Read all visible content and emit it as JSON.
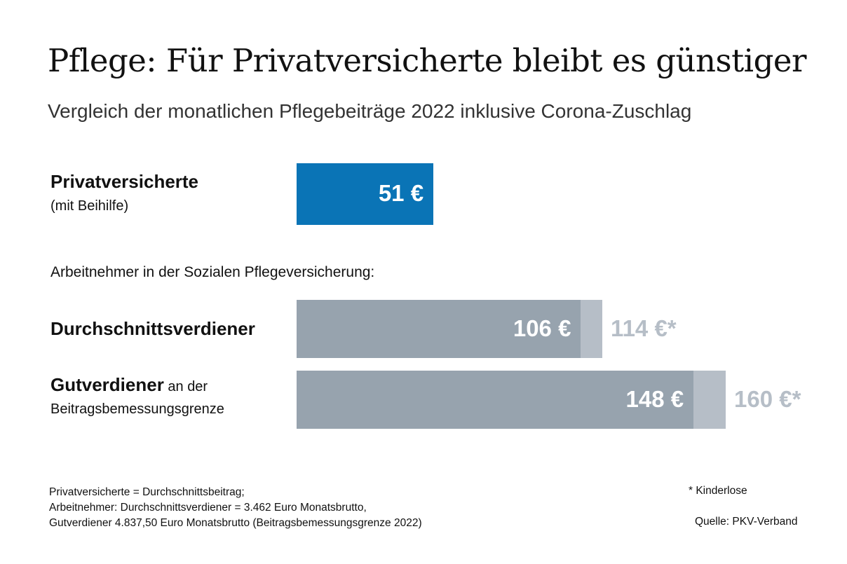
{
  "header": {
    "title": "Pflege: Für Privatversicherte bleibt es günstiger",
    "subtitle": "Vergleich der monatlichen Pflegebeiträge 2022 inklusive Corona-Zuschlag"
  },
  "section_label": "Arbeitnehmer in der Sozialen Pflegeversicherung:",
  "footnotes": {
    "line1": "Privatversicherte = Durchschnittsbeitrag;",
    "line2": "Arbeitnehmer: Durchschnittsverdiener = 3.462 Euro Monatsbrutto,",
    "line3": "Gutverdiener 4.837,50 Euro Monatsbrutto (Beitragsbemessungsgrenze 2022)",
    "asterisk_note": "* Kinderlose",
    "source": "Quelle: PKV-Verband"
  },
  "colors": {
    "private_bar": "#0a74b6",
    "base_bar": "#97a3ae",
    "childless_extra_bar": "#b6bec7",
    "childless_value_text": "#b6bec7"
  },
  "chart_data": {
    "type": "bar",
    "orientation": "horizontal",
    "title": "Pflege: Für Privatversicherte bleibt es günstiger",
    "subtitle": "Vergleich der monatlichen Pflegebeiträge 2022 inklusive Corona-Zuschlag",
    "unit": "€",
    "xlim": [
      0,
      160
    ],
    "grid": false,
    "rows": [
      {
        "label_bold": "Privatversicherte",
        "label_rest": "",
        "label_line2": "(mit Beihilfe)",
        "value": 51,
        "value_text": "51 €",
        "childless_value": null,
        "childless_text": ""
      },
      {
        "label_bold": "Durchschnittsverdiener",
        "label_rest": "",
        "label_line2": "",
        "value": 106,
        "value_text": "106 €",
        "childless_value": 114,
        "childless_text": "114 €*"
      },
      {
        "label_bold": "Gutverdiener",
        "label_rest": " an der",
        "label_line2": "Beitragsbemessungsgrenze",
        "value": 148,
        "value_text": "148 €",
        "childless_value": 160,
        "childless_text": "160 €*"
      }
    ]
  }
}
